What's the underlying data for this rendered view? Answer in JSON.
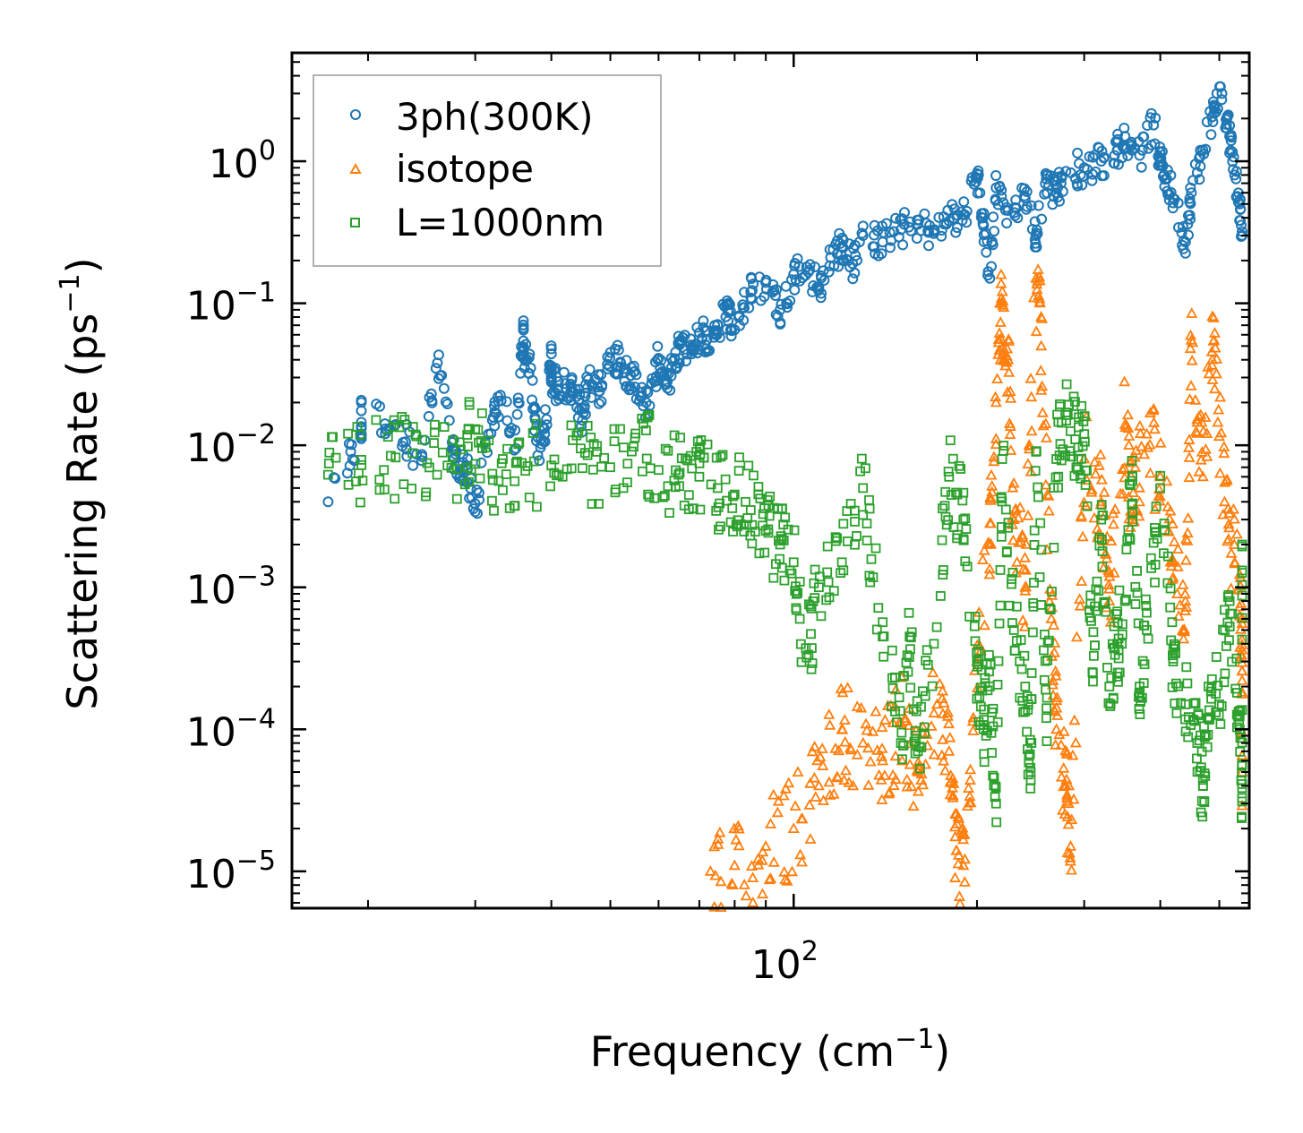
{
  "chart_data": {
    "type": "scatter",
    "title": "",
    "xlabel_main": "Frequency (cm",
    "xlabel_sup": "−1",
    "xlabel_end": ")",
    "ylabel_main": "Scattering Rate (ps",
    "ylabel_sup": "−1",
    "ylabel_end": ")",
    "xscale": "log",
    "yscale": "log",
    "xlim": [
      15,
      560
    ],
    "ylim": [
      5.5e-06,
      5.8
    ],
    "xticks": [
      {
        "base": "10",
        "exp": "2",
        "value": 100
      }
    ],
    "yticks": [
      {
        "base": "10",
        "exp": "0",
        "value": 1
      },
      {
        "base": "10",
        "exp": "−1",
        "value": 0.1
      },
      {
        "base": "10",
        "exp": "−2",
        "value": 0.01
      },
      {
        "base": "10",
        "exp": "−3",
        "value": 0.001
      },
      {
        "base": "10",
        "exp": "−4",
        "value": 0.0001
      },
      {
        "base": "10",
        "exp": "−5",
        "value": 1e-05
      }
    ],
    "legend_position": "top-left",
    "series": [
      {
        "name": "3ph(300K)",
        "marker": "circle",
        "color": "#1f77b4",
        "points": [
          [
            17.2,
            0.004
          ],
          [
            19.5,
            0.0115
          ],
          [
            19.5,
            0.0175
          ],
          [
            22.2,
            0.014
          ],
          [
            24.5,
            0.0078
          ],
          [
            26,
            0.038
          ],
          [
            27.5,
            0.0105
          ],
          [
            28,
            0.0062
          ],
          [
            29,
            0.0072
          ],
          [
            30,
            0.0034
          ],
          [
            32,
            0.015
          ],
          [
            33,
            0.0225
          ],
          [
            35,
            0.0095
          ],
          [
            36,
            0.065
          ],
          [
            36,
            0.046
          ],
          [
            37,
            0.035
          ],
          [
            38,
            0.0085
          ],
          [
            39,
            0.012
          ],
          [
            40,
            0.044
          ],
          [
            40,
            0.03
          ],
          [
            41,
            0.025
          ],
          [
            43,
            0.027
          ],
          [
            44,
            0.022
          ],
          [
            45,
            0.015
          ],
          [
            46,
            0.029
          ],
          [
            48,
            0.024
          ],
          [
            50,
            0.045
          ],
          [
            52,
            0.038
          ],
          [
            54,
            0.031
          ],
          [
            56,
            0.022
          ],
          [
            58,
            0.019
          ],
          [
            60,
            0.041
          ],
          [
            62,
            0.028
          ],
          [
            64,
            0.035
          ],
          [
            65,
            0.051
          ],
          [
            68,
            0.044
          ],
          [
            70,
            0.062
          ],
          [
            72,
            0.055
          ],
          [
            75,
            0.071
          ],
          [
            78,
            0.088
          ],
          [
            80,
            0.065
          ],
          [
            85,
            0.12
          ],
          [
            90,
            0.14
          ],
          [
            95,
            0.09
          ],
          [
            100,
            0.16
          ],
          [
            105,
            0.18
          ],
          [
            110,
            0.13
          ],
          [
            115,
            0.21
          ],
          [
            120,
            0.25
          ],
          [
            125,
            0.19
          ],
          [
            130,
            0.3
          ],
          [
            140,
            0.27
          ],
          [
            150,
            0.33
          ],
          [
            160,
            0.36
          ],
          [
            170,
            0.31
          ],
          [
            180,
            0.38
          ],
          [
            190,
            0.42
          ],
          [
            200,
            0.82
          ],
          [
            205,
            0.35
          ],
          [
            210,
            0.15
          ],
          [
            215,
            0.65
          ],
          [
            225,
            0.45
          ],
          [
            240,
            0.55
          ],
          [
            250,
            0.3
          ],
          [
            260,
            0.75
          ],
          [
            270,
            0.6
          ],
          [
            280,
            0.85
          ],
          [
            300,
            0.9
          ],
          [
            320,
            1.0
          ],
          [
            340,
            1.2
          ],
          [
            350,
            1.5
          ],
          [
            370,
            1.1
          ],
          [
            390,
            1.8
          ],
          [
            400,
            1.0
          ],
          [
            410,
            0.75
          ],
          [
            420,
            0.55
          ],
          [
            440,
            0.27
          ],
          [
            450,
            0.6
          ],
          [
            470,
            1.2
          ],
          [
            490,
            2.4
          ],
          [
            505,
            3.0
          ],
          [
            520,
            1.5
          ],
          [
            530,
            0.8
          ],
          [
            540,
            0.5
          ],
          [
            545,
            0.32
          ]
        ]
      },
      {
        "name": "isotope",
        "marker": "triangle",
        "color": "#ff7f0e",
        "points": [
          [
            73,
            1e-05
          ],
          [
            80,
            1.1e-05
          ],
          [
            90,
            1.5e-05
          ],
          [
            100,
            2e-05
          ],
          [
            110,
            4e-05
          ],
          [
            120,
            0.0001
          ],
          [
            130,
            8e-05
          ],
          [
            140,
            6e-05
          ],
          [
            150,
            0.00011
          ],
          [
            160,
            5e-05
          ],
          [
            170,
            0.00013
          ],
          [
            180,
            7e-05
          ],
          [
            185,
            1.4e-05
          ],
          [
            190,
            1.1e-05
          ],
          [
            200,
            0.0003
          ],
          [
            210,
            0.002
          ],
          [
            215,
            0.02
          ],
          [
            220,
            0.1
          ],
          [
            225,
            0.04
          ],
          [
            230,
            0.003
          ],
          [
            240,
            0.001
          ],
          [
            250,
            0.15
          ],
          [
            255,
            0.05
          ],
          [
            265,
            0.0006
          ],
          [
            270,
            0.0001
          ],
          [
            280,
            4e-05
          ],
          [
            285,
            1.5e-05
          ],
          [
            300,
            0.008
          ],
          [
            320,
            0.004
          ],
          [
            330,
            0.0008
          ],
          [
            350,
            0.014
          ],
          [
            360,
            0.003
          ],
          [
            380,
            0.012
          ],
          [
            400,
            0.006
          ],
          [
            420,
            0.0015
          ],
          [
            440,
            0.0008
          ],
          [
            450,
            0.055
          ],
          [
            470,
            0.006
          ],
          [
            490,
            0.055
          ],
          [
            510,
            0.004
          ],
          [
            530,
            0.0015
          ],
          [
            545,
            0.0006
          ],
          [
            545,
            5e-05
          ]
        ]
      },
      {
        "name": "L=1000nm",
        "marker": "square",
        "color": "#2ca02c",
        "points": [
          [
            17.2,
            0.0062
          ],
          [
            19.5,
            0.0079
          ],
          [
            22.2,
            0.0082
          ],
          [
            25,
            0.0075
          ],
          [
            28,
            0.0068
          ],
          [
            30,
            0.013
          ],
          [
            32,
            0.0063
          ],
          [
            35,
            0.0075
          ],
          [
            40,
            0.0072
          ],
          [
            45,
            0.0069
          ],
          [
            50,
            0.007
          ],
          [
            55,
            0.0121
          ],
          [
            60,
            0.0067
          ],
          [
            65,
            0.0064
          ],
          [
            70,
            0.006
          ],
          [
            75,
            0.005
          ],
          [
            80,
            0.0045
          ],
          [
            85,
            0.0035
          ],
          [
            90,
            0.0025
          ],
          [
            95,
            0.002
          ],
          [
            100,
            0.0015
          ],
          [
            105,
            0.00032
          ],
          [
            110,
            0.001
          ],
          [
            120,
            0.0015
          ],
          [
            130,
            0.005
          ],
          [
            140,
            0.00045
          ],
          [
            150,
            8e-05
          ],
          [
            155,
            0.00045
          ],
          [
            160,
            7e-05
          ],
          [
            170,
            0.0004
          ],
          [
            180,
            0.006
          ],
          [
            190,
            0.003
          ],
          [
            200,
            0.0003
          ],
          [
            205,
            0.0001
          ],
          [
            210,
            0.0002
          ],
          [
            215,
            3e-05
          ],
          [
            220,
            0.008
          ],
          [
            230,
            0.0005
          ],
          [
            240,
            0.0002
          ],
          [
            245,
            5e-05
          ],
          [
            250,
            0.009
          ],
          [
            260,
            0.00012
          ],
          [
            270,
            0.008
          ],
          [
            280,
            0.017
          ],
          [
            290,
            0.011
          ],
          [
            300,
            0.012
          ],
          [
            310,
            0.00025
          ],
          [
            320,
            0.003
          ],
          [
            330,
            0.0002
          ],
          [
            340,
            0.0004
          ],
          [
            350,
            0.0008
          ],
          [
            360,
            0.006
          ],
          [
            370,
            0.0002
          ],
          [
            380,
            0.0005
          ],
          [
            400,
            0.005
          ],
          [
            420,
            0.0003
          ],
          [
            440,
            0.00015
          ],
          [
            460,
            8e-05
          ],
          [
            470,
            4e-05
          ],
          [
            480,
            0.0002
          ],
          [
            500,
            0.00015
          ],
          [
            520,
            0.0008
          ],
          [
            540,
            0.0001
          ],
          [
            545,
            3.1e-05
          ],
          [
            545,
            0.002
          ]
        ]
      }
    ]
  }
}
